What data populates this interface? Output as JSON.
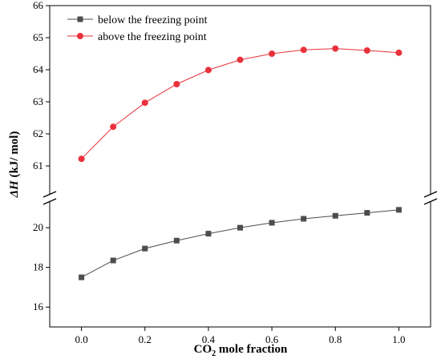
{
  "chart_data": {
    "type": "line",
    "x": [
      0.0,
      0.1,
      0.2,
      0.3,
      0.4,
      0.5,
      0.6,
      0.7,
      0.8,
      0.9,
      1.0
    ],
    "series": [
      {
        "name": "below the freezing point",
        "color": "#4d4d4d",
        "marker": "square",
        "values": [
          17.5,
          18.35,
          18.95,
          19.35,
          19.7,
          20.0,
          20.25,
          20.45,
          20.6,
          20.75,
          20.9
        ]
      },
      {
        "name": "above the freezing point",
        "color": "#e8323c",
        "marker": "circle",
        "values": [
          61.22,
          62.22,
          62.97,
          63.55,
          63.99,
          64.31,
          64.5,
          64.62,
          64.66,
          64.6,
          64.53
        ]
      }
    ],
    "xlabel_main": "CO",
    "xlabel_sub": "2",
    "xlabel_rest": " mole fraction",
    "ylabel_italic": "ΔH",
    "ylabel_rest": " (kJ/ mol)",
    "xlim": [
      -0.1,
      1.1
    ],
    "x_ticks": [
      0.0,
      0.2,
      0.4,
      0.6,
      0.8,
      1.0
    ],
    "x_tick_labels": [
      "0.0",
      "0.2",
      "0.4",
      "0.6",
      "0.8",
      "1.0"
    ],
    "y_broken": true,
    "y_lower_range": [
      15,
      21.5
    ],
    "y_upper_range": [
      60,
      66
    ],
    "y_lower_ticks": [
      16,
      18,
      20
    ],
    "y_upper_ticks": [
      61,
      62,
      63,
      64,
      65,
      66
    ],
    "legend_position": "top-left",
    "grid": false
  }
}
